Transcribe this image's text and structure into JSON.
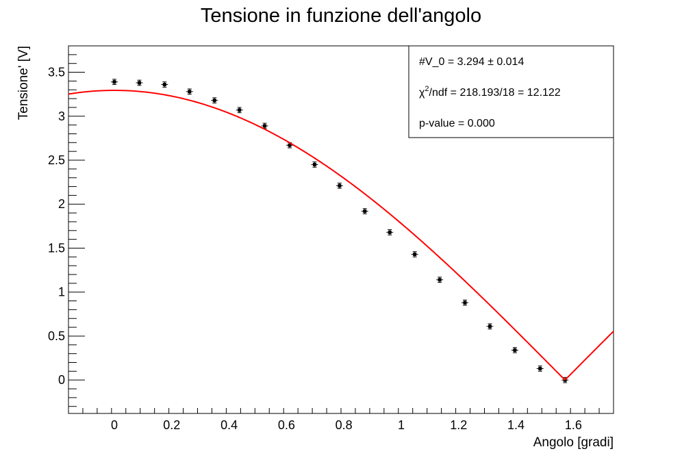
{
  "chart_data": {
    "type": "scatter",
    "title": "Tensione in funzione dell'angolo",
    "xlabel": "Angolo [gradi]",
    "ylabel": "Tensione' [V]",
    "xlim": [
      -0.16,
      1.74
    ],
    "ylim": [
      -0.38,
      3.8
    ],
    "x_ticks": [
      0,
      0.2,
      0.4,
      0.6,
      0.8,
      1,
      1.2,
      1.4,
      1.6
    ],
    "x_tick_labels": [
      "0",
      "0.2",
      "0.4",
      "0.6",
      "0.8",
      "1",
      "1.2",
      "1.4",
      "1.6"
    ],
    "y_ticks": [
      0,
      0.5,
      1,
      1.5,
      2,
      2.5,
      3,
      3.5
    ],
    "y_tick_labels": [
      "0",
      "0.5",
      "1",
      "1.5",
      "2",
      "2.5",
      "3",
      "3.5"
    ],
    "grid": false,
    "series": [
      {
        "kind": "points_with_errors",
        "color": "#000000",
        "points": [
          {
            "x": 0.0,
            "y": 3.39,
            "ey": 0.03
          },
          {
            "x": 0.087,
            "y": 3.38,
            "ey": 0.03
          },
          {
            "x": 0.175,
            "y": 3.36,
            "ey": 0.03
          },
          {
            "x": 0.262,
            "y": 3.28,
            "ey": 0.03
          },
          {
            "x": 0.349,
            "y": 3.18,
            "ey": 0.03
          },
          {
            "x": 0.436,
            "y": 3.07,
            "ey": 0.03
          },
          {
            "x": 0.524,
            "y": 2.89,
            "ey": 0.03
          },
          {
            "x": 0.611,
            "y": 2.67,
            "ey": 0.03
          },
          {
            "x": 0.698,
            "y": 2.45,
            "ey": 0.03
          },
          {
            "x": 0.785,
            "y": 2.21,
            "ey": 0.03
          },
          {
            "x": 0.873,
            "y": 1.92,
            "ey": 0.03
          },
          {
            "x": 0.96,
            "y": 1.68,
            "ey": 0.03
          },
          {
            "x": 1.047,
            "y": 1.43,
            "ey": 0.03
          },
          {
            "x": 1.134,
            "y": 1.14,
            "ey": 0.03
          },
          {
            "x": 1.222,
            "y": 0.88,
            "ey": 0.03
          },
          {
            "x": 1.309,
            "y": 0.61,
            "ey": 0.03
          },
          {
            "x": 1.396,
            "y": 0.34,
            "ey": 0.03
          },
          {
            "x": 1.484,
            "y": 0.13,
            "ey": 0.03
          },
          {
            "x": 1.571,
            "y": 0.0,
            "ey": 0.03
          }
        ]
      },
      {
        "kind": "fit_curve",
        "color": "#ff0000",
        "function": "V_0 * |cos(x)|",
        "V_0": 3.294
      }
    ],
    "stats_box": {
      "line1": "#V_0 = 3.294 ± 0.014",
      "line2_prefix": "χ",
      "line2_sup": "2",
      "line2_rest": "/ndf = 218.193/18 = 12.122",
      "line3": "p-value = 0.000"
    }
  }
}
